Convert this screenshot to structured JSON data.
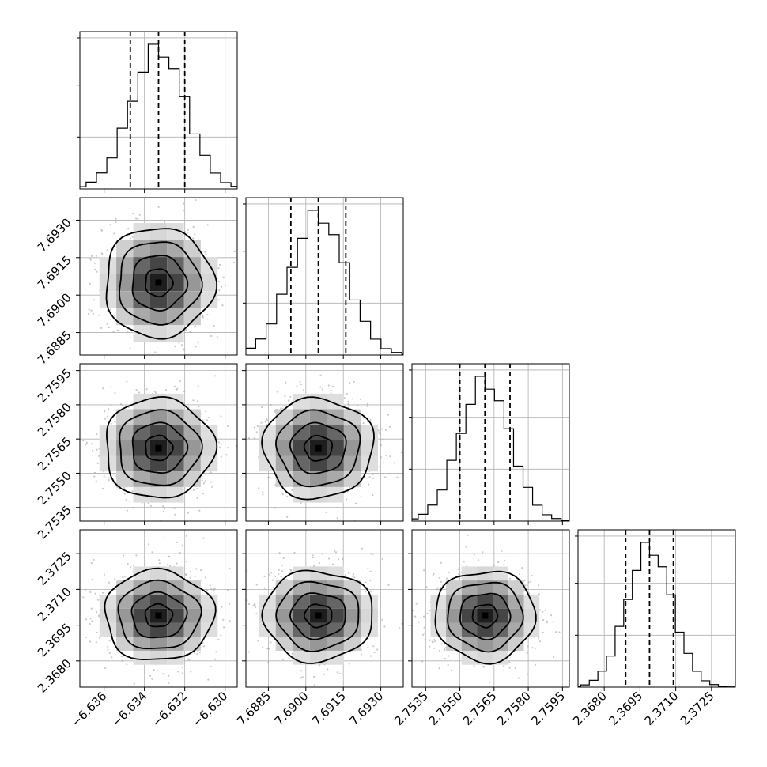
{
  "chart_data": {
    "type": "corner",
    "title": "",
    "grid": true,
    "parameters": [
      {
        "name": "",
        "range": [
          -6.6372,
          -6.6294
        ],
        "median": -6.6333,
        "quantiles": [
          -6.6347,
          -6.6333,
          -6.632
        ],
        "sigma": 0.00135,
        "ticks": [
          -6.636,
          -6.634,
          -6.632,
          -6.63
        ],
        "tick_labels": [
          "−6.636",
          "−6.634",
          "−6.632",
          "−6.630"
        ]
      },
      {
        "name": "",
        "range": [
          7.6876,
          7.6939
        ],
        "median": 7.6905,
        "quantiles": [
          7.6894,
          7.6905,
          7.6916
        ],
        "sigma": 0.0011,
        "ticks": [
          7.6885,
          7.69,
          7.6915,
          7.693
        ],
        "tick_labels": [
          "7.6885",
          "7.6900",
          "7.6915",
          "7.6930"
        ]
      },
      {
        "name": "",
        "range": [
          2.7529,
          2.7598
        ],
        "median": 2.7561,
        "quantiles": [
          2.755,
          2.7561,
          2.7572
        ],
        "sigma": 0.0011,
        "ticks": [
          2.7535,
          2.755,
          2.7565,
          2.758,
          2.7595
        ],
        "tick_labels": [
          "2.7535",
          "2.7550",
          "2.7565",
          "2.7580",
          "2.7595"
        ]
      },
      {
        "name": "",
        "range": [
          2.3669,
          2.3735
        ],
        "median": 2.3699,
        "quantiles": [
          2.3689,
          2.3699,
          2.3709
        ],
        "sigma": 0.00095,
        "ticks": [
          2.368,
          2.3695,
          2.371,
          2.3725
        ],
        "tick_labels": [
          "2.3680",
          "2.3695",
          "2.3710",
          "2.3725"
        ]
      }
    ],
    "histogram_bins": 20,
    "diagonal_ytick_fractions": [
      0.33,
      0.66,
      0.96
    ],
    "contour_levels_sigma": [
      0.5,
      1.0,
      1.5,
      2.0
    ]
  }
}
